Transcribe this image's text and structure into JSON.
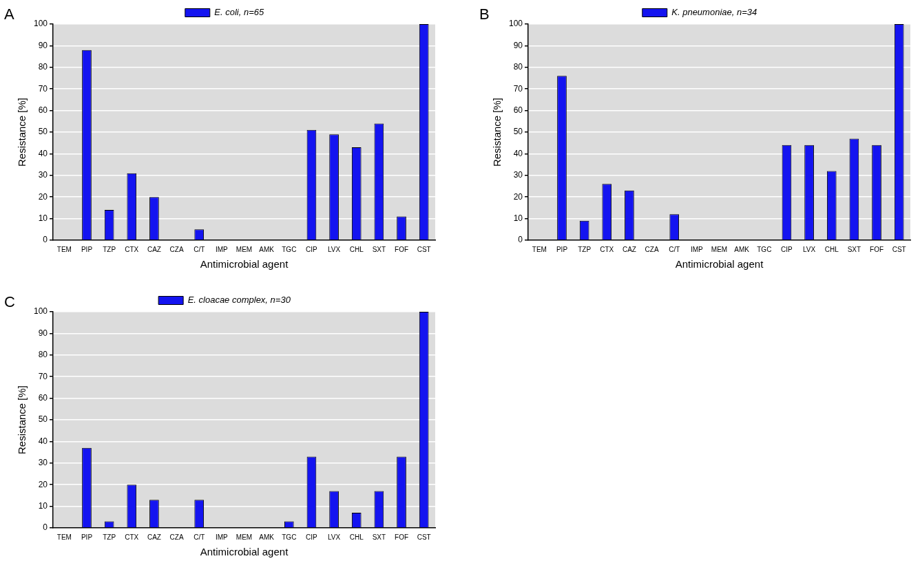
{
  "chart_data": [
    {
      "type": "bar",
      "title": "A",
      "xlabel": "Antimicrobial agent",
      "ylabel": "Resistance [%]",
      "categories": [
        "TEM",
        "PIP",
        "TZP",
        "CTX",
        "CAZ",
        "CZA",
        "C/T",
        "IMP",
        "MEM",
        "AMK",
        "TGC",
        "CIP",
        "LVX",
        "CHL",
        "SXT",
        "FOF",
        "CST"
      ],
      "series": [
        {
          "name": "E. coli, n=65",
          "color": "#1414f0",
          "values": [
            0,
            88,
            14,
            31,
            20,
            0,
            5,
            0,
            0,
            0,
            0,
            51,
            49,
            43,
            54,
            11,
            100
          ]
        }
      ],
      "ylim": [
        0,
        100
      ],
      "yticks": [
        0,
        10,
        20,
        30,
        40,
        50,
        60,
        70,
        80,
        90,
        100
      ],
      "grid": "y",
      "legend": "top"
    },
    {
      "type": "bar",
      "title": "B",
      "xlabel": "Antimicrobial agent",
      "ylabel": "Resistance [%]",
      "categories": [
        "TEM",
        "PIP",
        "TZP",
        "CTX",
        "CAZ",
        "CZA",
        "C/T",
        "IMP",
        "MEM",
        "AMK",
        "TGC",
        "CIP",
        "LVX",
        "CHL",
        "SXT",
        "FOF",
        "CST"
      ],
      "series": [
        {
          "name": "K. pneumoniae, n=34",
          "color": "#1414f0",
          "values": [
            0,
            76,
            9,
            26,
            23,
            0,
            12,
            0,
            0,
            0,
            0,
            44,
            44,
            32,
            47,
            44,
            100
          ]
        }
      ],
      "ylim": [
        0,
        100
      ],
      "yticks": [
        0,
        10,
        20,
        30,
        40,
        50,
        60,
        70,
        80,
        90,
        100
      ],
      "grid": "y",
      "legend": "top"
    },
    {
      "type": "bar",
      "title": "C",
      "xlabel": "Antimicrobial agent",
      "ylabel": "Resistance [%]",
      "categories": [
        "TEM",
        "PIP",
        "TZP",
        "CTX",
        "CAZ",
        "CZA",
        "C/T",
        "IMP",
        "MEM",
        "AMK",
        "TGC",
        "CIP",
        "LVX",
        "CHL",
        "SXT",
        "FOF",
        "CST"
      ],
      "series": [
        {
          "name": "E. cloacae complex, n=30",
          "color": "#1414f0",
          "values": [
            0,
            37,
            3,
            20,
            13,
            0,
            13,
            0,
            0,
            0,
            3,
            33,
            17,
            7,
            17,
            33,
            100
          ]
        }
      ],
      "ylim": [
        0,
        100
      ],
      "yticks": [
        0,
        10,
        20,
        30,
        40,
        50,
        60,
        70,
        80,
        90,
        100
      ],
      "grid": "y",
      "legend": "top"
    }
  ]
}
